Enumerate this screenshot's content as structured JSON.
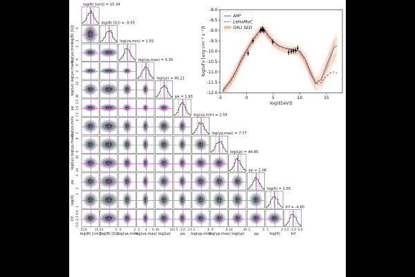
{
  "corner": {
    "params": [
      {
        "id": "R",
        "title": "log(R) [cm]) = 15.34",
        "xlabel": "log(R) [cm])",
        "ylabel": "log(R) [cm])",
        "ticks": [
          "15.0",
          "15.5"
        ]
      },
      {
        "id": "B",
        "title": "log(B) [G]) = -9.55",
        "xlabel": "log(B) [G])",
        "ylabel": "log(B) [G])",
        "ticks": [
          "-1",
          "0"
        ]
      },
      {
        "id": "gmin",
        "title": "log(γe,min) = 1.55",
        "xlabel": "log(γe,min)",
        "ylabel": "log(γe,min)",
        "ticks": [
          "0",
          "2"
        ]
      },
      {
        "id": "gmax",
        "title": "log(γe,max) = 5.30",
        "xlabel": "log(γe,max)",
        "ylabel": "log(γe,max)",
        "ticks": [
          "2",
          "4",
          "6"
        ]
      },
      {
        "id": "Le",
        "title": "log(Le) = 40.21",
        "xlabel": "log(Le)",
        "ylabel": "log(Le)",
        "ticks": [
          "40",
          "42"
        ]
      },
      {
        "id": "pe",
        "title": "pe = 1.93",
        "xlabel": "pe",
        "ylabel": "pe",
        "ticks": [
          "1.5",
          "2.0",
          "2.5"
        ]
      },
      {
        "id": "gbmin",
        "title": "log(γp,min) = 2.59",
        "xlabel": "log(γp,min)",
        "ylabel": "log(γp,min)",
        "ticks": [
          "2",
          "4"
        ]
      },
      {
        "id": "gbmax",
        "title": "log(γp,max) = 7.77",
        "xlabel": "log(γp,max)",
        "ylabel": "log(γp,max)",
        "ticks": [
          "6",
          "8"
        ]
      },
      {
        "id": "Lp",
        "title": "log(Lp) = 44.85",
        "xlabel": "log(Lp)",
        "ylabel": "log(Lp)",
        "ticks": [
          "44",
          "46"
        ]
      },
      {
        "id": "pp",
        "title": "pp = 2.06",
        "xlabel": "pp",
        "ylabel": "pp",
        "ticks": [
          "2",
          "3"
        ]
      },
      {
        "id": "delta",
        "title": "log(δ) = 1.55",
        "xlabel": "log(δ)",
        "ylabel": "log(δ)",
        "ticks": [
          "1",
          "2"
        ]
      },
      {
        "id": "lnf",
        "title": "lnf = -4.60",
        "xlabel": "lnf",
        "ylabel": "lnf",
        "ticks": [
          "-5.0",
          "-2.5",
          "0.0"
        ]
      }
    ]
  },
  "chart_data": {
    "type": "line",
    "xlabel": "log(E[eV])",
    "ylabel": "log(νFν [erg cm⁻² s⁻¹])",
    "xlim": [
      -5,
      18
    ],
    "ylim": [
      -12.0,
      -8.0
    ],
    "xticks": [
      -5,
      0,
      5,
      10,
      15
    ],
    "yticks": [
      -12.0,
      -11.5,
      -11.0,
      -10.5,
      -10.0,
      -9.5,
      -9.0,
      -8.5,
      -8.0
    ],
    "grid": false,
    "legend_position": "top-left",
    "series": [
      {
        "name": "AM³",
        "color": "#4a7ec6",
        "style": "solid",
        "x": [
          -4.5,
          -3,
          -2,
          -1,
          0,
          1,
          2,
          2.5,
          3,
          3.5,
          4,
          5,
          6,
          7,
          8,
          9,
          10,
          11,
          12,
          13,
          14,
          15,
          16,
          16.5,
          17
        ],
        "y": [
          -11.9,
          -11.4,
          -10.95,
          -10.4,
          -9.95,
          -9.5,
          -9.15,
          -9.0,
          -8.95,
          -9.0,
          -9.2,
          -9.5,
          -9.72,
          -9.82,
          -9.88,
          -9.93,
          -10.0,
          -10.35,
          -11.0,
          -11.55,
          -11.35,
          -10.75,
          -10.1,
          -9.8,
          -9.75
        ]
      },
      {
        "name": "LeHaMoC",
        "color": "#c0407a",
        "style": "dashed",
        "x": [
          -4.5,
          -3,
          -2,
          -1,
          0,
          1,
          2,
          2.5,
          3,
          3.5,
          4,
          5,
          6,
          7,
          8,
          9,
          10,
          11,
          12,
          13,
          14,
          15,
          16,
          16.5,
          17
        ],
        "y": [
          -11.95,
          -11.45,
          -11.0,
          -10.45,
          -10.0,
          -9.55,
          -9.2,
          -9.05,
          -9.0,
          -9.05,
          -9.25,
          -9.55,
          -9.75,
          -9.85,
          -9.9,
          -9.95,
          -10.05,
          -10.4,
          -11.05,
          -11.6,
          -11.5,
          -11.2,
          -11.0,
          -11.0,
          -11.05
        ]
      },
      {
        "name": "GRU SED",
        "color": "#f39a5a",
        "style": "band"
      }
    ],
    "observations": {
      "x": [
        0.3,
        1.2,
        2.6,
        2.8,
        3.0,
        3.1,
        3.3,
        4.9,
        7.9,
        8.4,
        8.8,
        9.2,
        9.6
      ],
      "y": [
        -10.1,
        -9.5,
        -9.0,
        -8.95,
        -8.93,
        -8.97,
        -9.0,
        -9.55,
        -10.05,
        -10.0,
        -9.98,
        -9.95,
        -9.85
      ]
    }
  }
}
